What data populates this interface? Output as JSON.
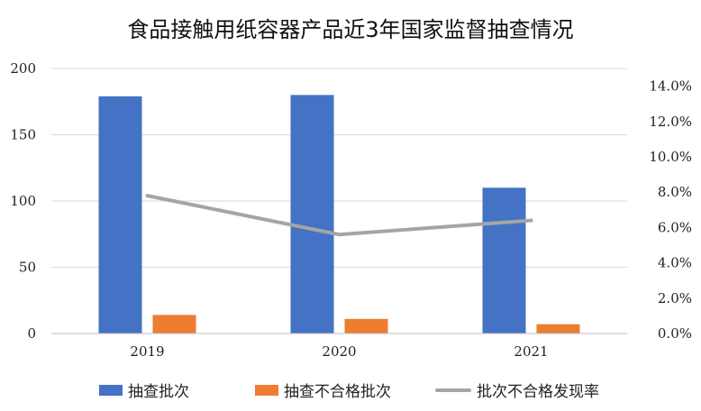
{
  "chart_data": {
    "type": "bar",
    "title": "食品接触用纸容器产品近3年国家监督抽查情况",
    "categories": [
      "2019",
      "2020",
      "2021"
    ],
    "series": [
      {
        "name": "抽查批次",
        "kind": "bar",
        "axis": "left",
        "color": "#4472C4",
        "values": [
          179,
          180,
          110
        ]
      },
      {
        "name": "抽查不合格批次",
        "kind": "bar",
        "axis": "left",
        "color": "#ED7D31",
        "values": [
          14,
          11,
          7
        ]
      },
      {
        "name": "批次不合格发现率",
        "kind": "line",
        "axis": "right",
        "color": "#A5A5A5",
        "values": [
          7.8,
          5.6,
          6.4
        ]
      }
    ],
    "y_left": {
      "min": 0,
      "max": 200,
      "ticks": [
        0,
        50,
        100,
        150,
        200
      ]
    },
    "y_right": {
      "min": 0,
      "max": 15,
      "ticks": [
        "0.0%",
        "2.0%",
        "4.0%",
        "6.0%",
        "8.0%",
        "10.0%",
        "12.0%",
        "14.0%"
      ],
      "tick_values": [
        0,
        2,
        4,
        6,
        8,
        10,
        12,
        14
      ]
    },
    "grid": true,
    "legend": "bottom"
  }
}
